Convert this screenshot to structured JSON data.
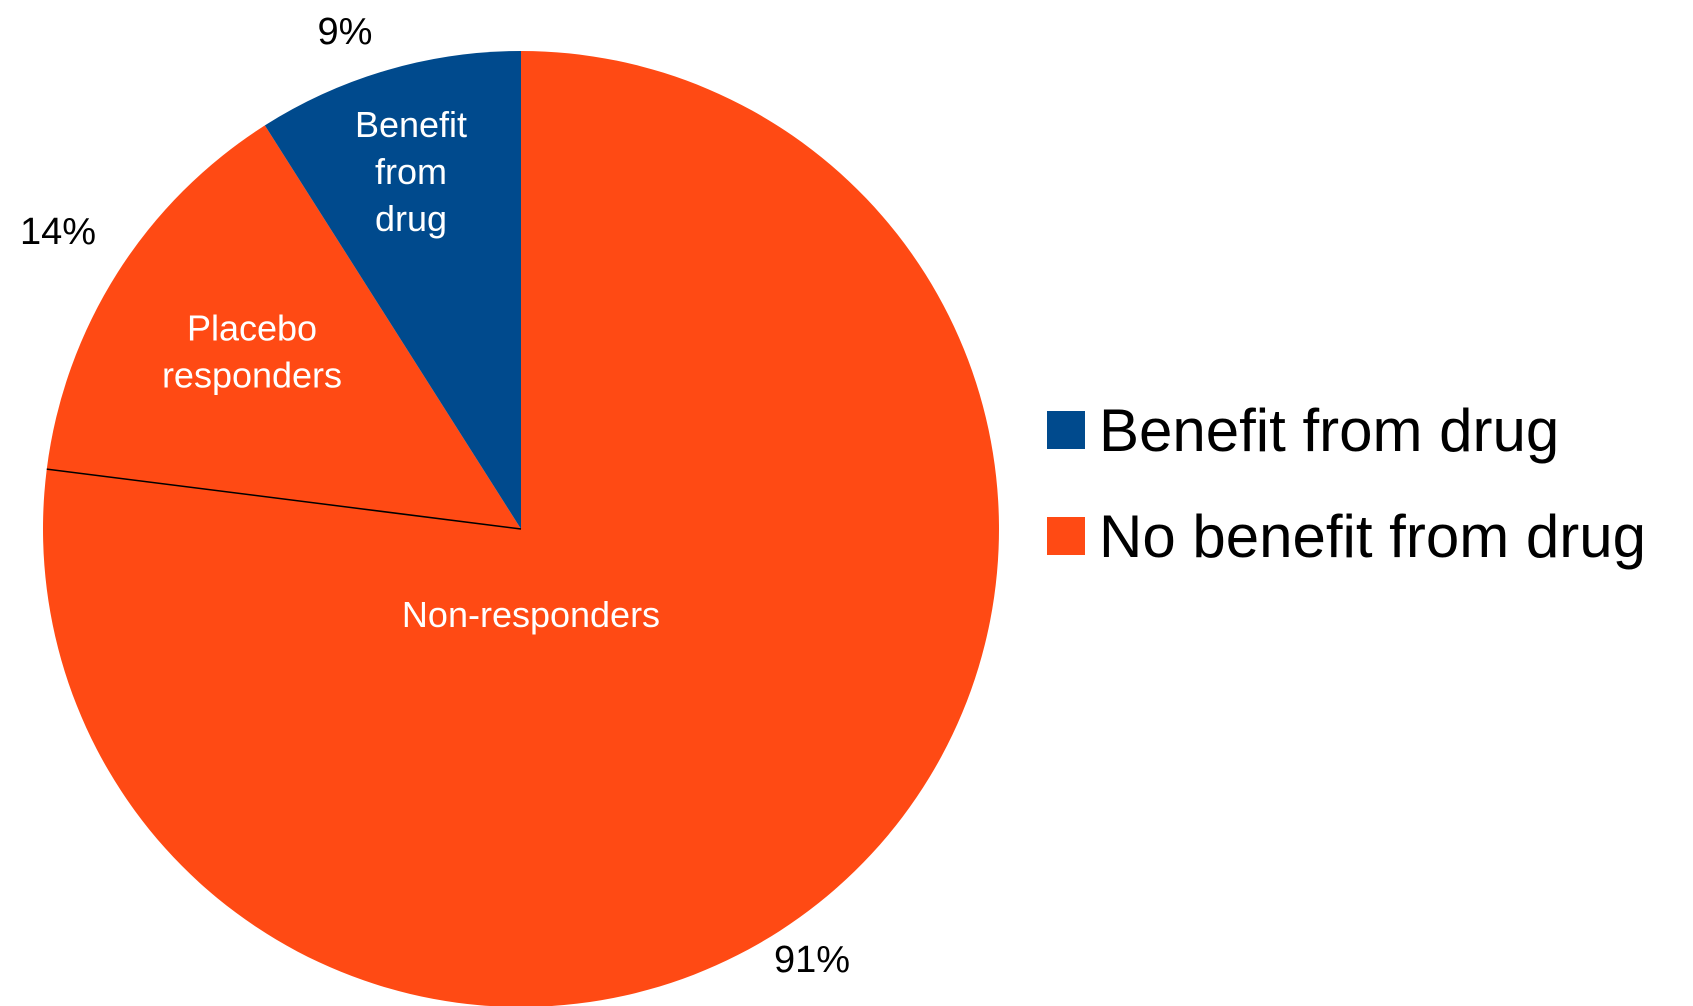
{
  "chart_data": {
    "type": "pie",
    "start_angle_deg": 0,
    "direction": "clockwise",
    "slices": [
      {
        "label": "Non-responders",
        "value": 77,
        "group": "No benefit from drug",
        "color": "#ff4a14"
      },
      {
        "label": "Placebo responders",
        "value": 14,
        "group": "No benefit from drug",
        "color": "#ff4a14"
      },
      {
        "label": "Benefit from drug",
        "value": 9,
        "group": "Benefit from drug",
        "color": "#004a8d"
      }
    ],
    "group_labels": [
      {
        "group": "No benefit from drug",
        "text": "91%"
      },
      {
        "group": "Benefit from drug",
        "text": "9%"
      }
    ],
    "slice_percent_labels": [
      {
        "slice": "Placebo responders",
        "text": "14%"
      }
    ],
    "legend": {
      "position": "right",
      "entries": [
        {
          "label": "Benefit from drug",
          "color": "#004a8d"
        },
        {
          "label": "No benefit from drug",
          "color": "#ff4a14"
        }
      ]
    }
  }
}
